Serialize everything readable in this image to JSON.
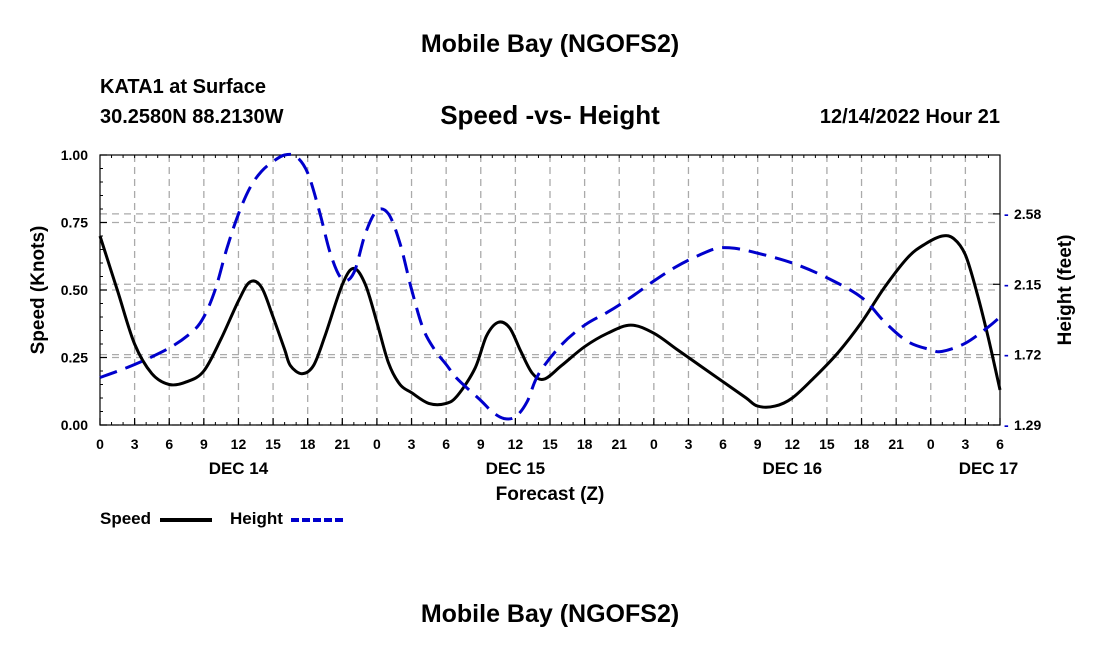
{
  "header": {
    "top_title": "Mobile Bay (NGOFS2)",
    "station": "KATA1 at Surface",
    "coords": "30.2580N  88.2130W",
    "chart_title": "Speed -vs- Height",
    "datetime": "12/14/2022 Hour 21",
    "bottom_title": "Mobile Bay (NGOFS2)"
  },
  "legend": {
    "speed_label": "Speed",
    "height_label": "Height"
  },
  "chart_data": {
    "type": "line",
    "title": "Speed -vs- Height",
    "xlabel": "Forecast (Z)",
    "ylabel_left": "Speed (Knots)",
    "ylabel_right": "Height (feet)",
    "x_unit": "forecast hour (0 = 00Z Dec 14)",
    "xlim": [
      0,
      78
    ],
    "ylim_left": [
      0,
      1.0
    ],
    "ylim_right": [
      1.29,
      2.94
    ],
    "x_ticks": [
      0,
      3,
      6,
      9,
      12,
      15,
      18,
      21,
      24,
      27,
      30,
      33,
      36,
      39,
      42,
      45,
      48,
      51,
      54,
      57,
      60,
      63,
      66,
      69,
      72,
      75,
      78
    ],
    "x_tick_labels": [
      "0",
      "3",
      "6",
      "9",
      "12",
      "15",
      "18",
      "21",
      "0",
      "3",
      "6",
      "9",
      "12",
      "15",
      "18",
      "21",
      "0",
      "3",
      "6",
      "9",
      "12",
      "15",
      "18",
      "21",
      "0",
      "3",
      "6"
    ],
    "day_labels": [
      {
        "x": 12,
        "label": "DEC 14"
      },
      {
        "x": 36,
        "label": "DEC 15"
      },
      {
        "x": 60,
        "label": "DEC 16"
      },
      {
        "x": 77,
        "label": "DEC 17"
      }
    ],
    "left_ticks": [
      0,
      0.25,
      0.5,
      0.75,
      1.0
    ],
    "left_tick_labels": [
      "0.00",
      "0.25",
      "0.50",
      "0.75",
      "1.00"
    ],
    "right_ticks": [
      1.29,
      1.72,
      2.15,
      2.58
    ],
    "right_tick_labels": [
      "1.29",
      "1.72",
      "2.15",
      "2.58"
    ],
    "grid": true,
    "series": [
      {
        "name": "Speed",
        "axis": "left",
        "color": "#000000",
        "style": "solid",
        "points": [
          [
            0,
            0.7
          ],
          [
            1.5,
            0.5
          ],
          [
            3,
            0.3
          ],
          [
            4.5,
            0.19
          ],
          [
            6,
            0.15
          ],
          [
            7.5,
            0.16
          ],
          [
            9,
            0.2
          ],
          [
            10.5,
            0.32
          ],
          [
            12,
            0.46
          ],
          [
            13,
            0.53
          ],
          [
            14,
            0.51
          ],
          [
            15,
            0.4
          ],
          [
            16,
            0.28
          ],
          [
            16.5,
            0.22
          ],
          [
            17.5,
            0.19
          ],
          [
            18.5,
            0.22
          ],
          [
            19.5,
            0.33
          ],
          [
            21,
            0.52
          ],
          [
            22,
            0.58
          ],
          [
            23,
            0.52
          ],
          [
            24,
            0.38
          ],
          [
            25,
            0.23
          ],
          [
            26,
            0.15
          ],
          [
            27,
            0.12
          ],
          [
            28.5,
            0.08
          ],
          [
            30,
            0.08
          ],
          [
            31,
            0.11
          ],
          [
            32.5,
            0.21
          ],
          [
            33.5,
            0.33
          ],
          [
            34.5,
            0.38
          ],
          [
            35.5,
            0.36
          ],
          [
            36.5,
            0.27
          ],
          [
            37.5,
            0.19
          ],
          [
            38.5,
            0.17
          ],
          [
            40,
            0.22
          ],
          [
            42,
            0.29
          ],
          [
            44,
            0.34
          ],
          [
            46,
            0.37
          ],
          [
            48,
            0.34
          ],
          [
            50,
            0.28
          ],
          [
            52,
            0.22
          ],
          [
            54,
            0.16
          ],
          [
            56,
            0.1
          ],
          [
            57,
            0.07
          ],
          [
            58.5,
            0.07
          ],
          [
            60,
            0.1
          ],
          [
            62,
            0.18
          ],
          [
            64,
            0.27
          ],
          [
            66,
            0.38
          ],
          [
            68,
            0.51
          ],
          [
            70,
            0.62
          ],
          [
            71.5,
            0.67
          ],
          [
            73,
            0.7
          ],
          [
            74,
            0.69
          ],
          [
            75,
            0.63
          ],
          [
            76,
            0.49
          ],
          [
            77,
            0.32
          ],
          [
            78,
            0.13
          ]
        ]
      },
      {
        "name": "Height",
        "axis": "right",
        "color": "#0000cc",
        "style": "dashed",
        "points": [
          [
            0,
            1.58
          ],
          [
            3,
            1.66
          ],
          [
            6,
            1.76
          ],
          [
            8,
            1.86
          ],
          [
            9,
            1.95
          ],
          [
            10,
            2.12
          ],
          [
            11,
            2.37
          ],
          [
            12,
            2.58
          ],
          [
            13,
            2.74
          ],
          [
            14,
            2.84
          ],
          [
            15,
            2.9
          ],
          [
            16,
            2.94
          ],
          [
            17,
            2.93
          ],
          [
            18,
            2.83
          ],
          [
            19,
            2.6
          ],
          [
            20,
            2.33
          ],
          [
            21,
            2.18
          ],
          [
            22,
            2.22
          ],
          [
            23,
            2.46
          ],
          [
            24,
            2.6
          ],
          [
            25,
            2.58
          ],
          [
            26,
            2.4
          ],
          [
            27,
            2.12
          ],
          [
            28,
            1.88
          ],
          [
            29,
            1.75
          ],
          [
            30,
            1.66
          ],
          [
            31,
            1.57
          ],
          [
            33,
            1.44
          ],
          [
            34,
            1.37
          ],
          [
            35,
            1.33
          ],
          [
            36,
            1.34
          ],
          [
            37,
            1.43
          ],
          [
            38,
            1.6
          ],
          [
            40,
            1.78
          ],
          [
            42,
            1.9
          ],
          [
            44,
            1.98
          ],
          [
            46,
            2.07
          ],
          [
            48,
            2.17
          ],
          [
            50,
            2.26
          ],
          [
            52,
            2.33
          ],
          [
            53.5,
            2.37
          ],
          [
            55,
            2.37
          ],
          [
            57,
            2.34
          ],
          [
            60,
            2.28
          ],
          [
            63,
            2.19
          ],
          [
            66,
            2.07
          ],
          [
            68,
            1.92
          ],
          [
            70,
            1.8
          ],
          [
            72,
            1.75
          ],
          [
            73,
            1.74
          ],
          [
            75,
            1.79
          ],
          [
            77,
            1.89
          ],
          [
            78,
            1.95
          ]
        ]
      }
    ]
  }
}
